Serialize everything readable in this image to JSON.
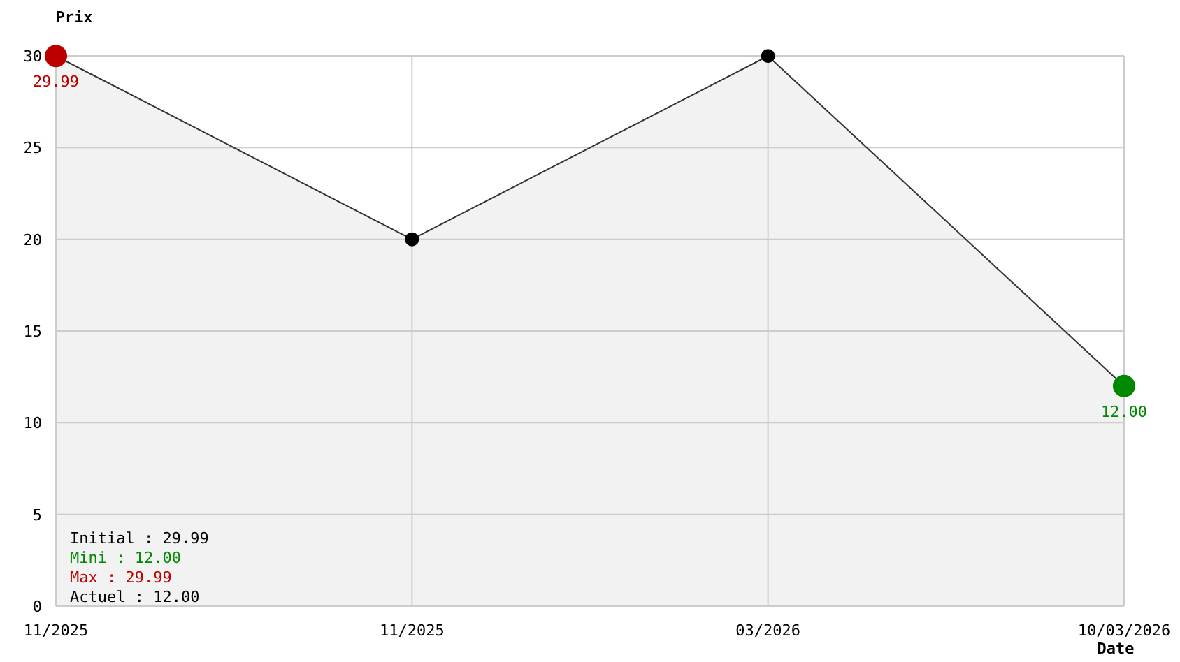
{
  "chart_data": {
    "type": "area",
    "xlabel": "Date",
    "ylabel": "Prix",
    "categories": [
      "11/2025",
      "11/2025",
      "03/2026",
      "10/03/2026"
    ],
    "series": [
      {
        "color": "#333333",
        "colors": [
          "#bb0000",
          "#000000",
          "#000000",
          "#008800"
        ],
        "values": [
          29.99,
          20,
          29.99,
          12
        ],
        "value_labels": [
          "29.99",
          null,
          null,
          "12.00"
        ]
      }
    ],
    "ylim": [
      0,
      30
    ],
    "yticks": [
      0,
      5,
      10,
      15,
      20,
      25,
      30
    ],
    "grid": true,
    "marker": "circle",
    "annotations": [
      "Initial : 29.99",
      "Mini : 12.00",
      "Max : 29.99",
      "Actuel : 12.00"
    ]
  }
}
